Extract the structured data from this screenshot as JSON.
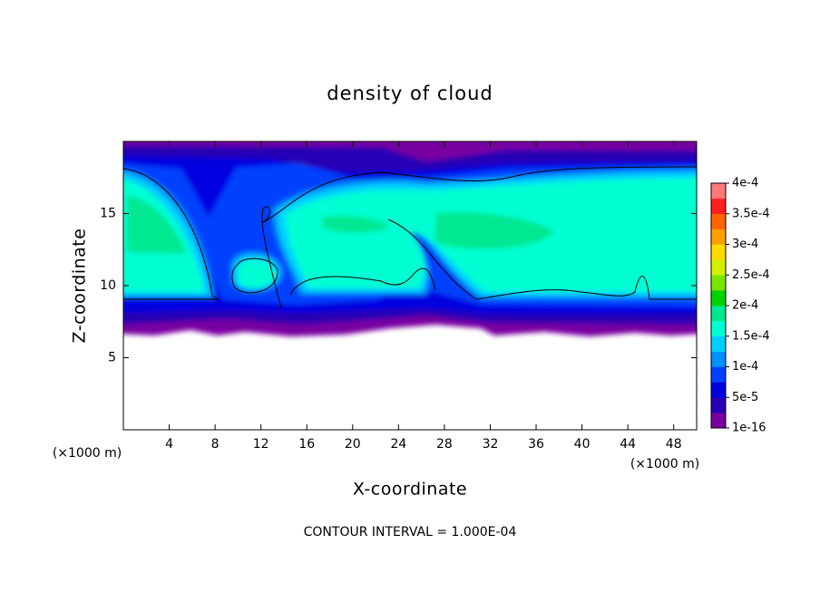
{
  "chart_data": {
    "type": "contour",
    "title": "density of cloud",
    "xlabel": "X-coordinate",
    "ylabel": "Z-coordinate",
    "x_unit": "(×1000 m)",
    "y_unit": "(×1000 m)",
    "xlim": [
      0,
      50
    ],
    "ylim": [
      0,
      20
    ],
    "xticks": [
      4,
      8,
      12,
      16,
      20,
      24,
      28,
      32,
      36,
      40,
      44,
      48
    ],
    "yticks": [
      5,
      10,
      15
    ],
    "colorbar": {
      "clim": [
        1e-16,
        0.0004
      ],
      "ticks": [
        1e-16,
        {
          "value": 5e-05,
          "label": "5e-5"
        },
        {
          "value": 0.0001,
          "label": "1e-4"
        },
        {
          "value": 0.00015,
          "label": "1.5e-4"
        },
        {
          "value": 0.0002,
          "label": "2e-4"
        },
        {
          "value": 0.00025,
          "label": "2.5e-4"
        },
        {
          "value": 0.0003,
          "label": "3e-4"
        },
        {
          "value": 0.00035,
          "label": "3.5e-4"
        },
        {
          "value": 0.0004,
          "label": "4e-4"
        }
      ],
      "colors": [
        "#7800a0",
        "#2800b4",
        "#0000e0",
        "#0040ff",
        "#0090ff",
        "#00d0ff",
        "#00ffd2",
        "#00e890",
        "#00d200",
        "#78e600",
        "#d2f000",
        "#ffdc00",
        "#ffa000",
        "#ff6400",
        "#ff1e1e",
        "#ff7878"
      ]
    },
    "footnote": "CONTOUR INTERVAL = 1.000E-04"
  }
}
